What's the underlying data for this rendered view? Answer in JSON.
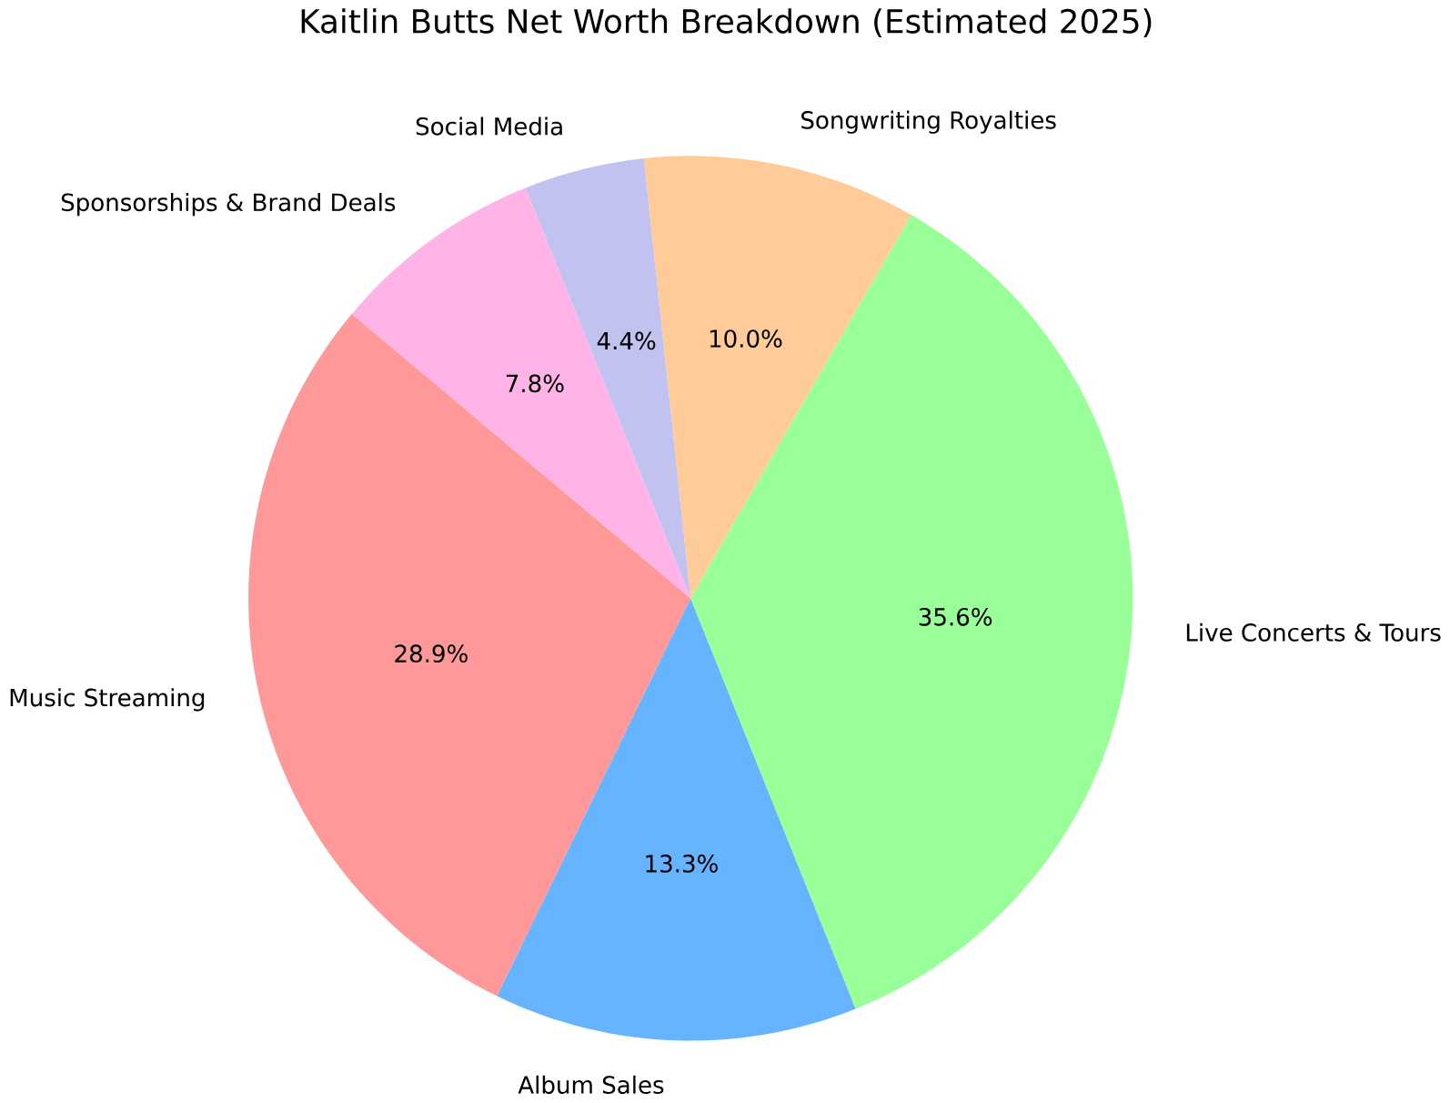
{
  "chart_data": {
    "type": "pie",
    "title": "Kaitlin Butts Net Worth Breakdown (Estimated 2025)",
    "categories": [
      "Music Streaming",
      "Album Sales",
      "Live Concerts & Tours",
      "Songwriting Royalties",
      "Social Media",
      "Sponsorships & Brand Deals"
    ],
    "values": [
      28.9,
      13.3,
      35.6,
      10.0,
      4.4,
      7.8
    ],
    "value_labels": [
      "28.9%",
      "13.3%",
      "35.6%",
      "10.0%",
      "4.4%",
      "7.8%"
    ],
    "colors": [
      "#ff9999",
      "#66b3ff",
      "#99ff99",
      "#ffcc99",
      "#c2c2f0",
      "#ffb3e6"
    ]
  }
}
